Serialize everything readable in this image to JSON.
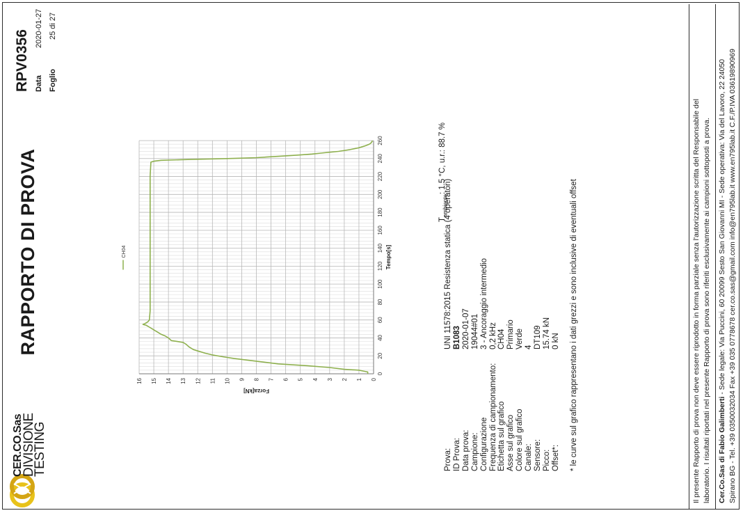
{
  "header": {
    "logo_lines": [
      "CER.CO.Sas",
      "DIVISIONE",
      "TESTING"
    ],
    "title": "RAPPORTO DI PROVA",
    "report_code": "RPV0356",
    "data_label": "Data",
    "data_value": "2020-01-27",
    "foglio_label": "Foglio",
    "foglio_value": "25 di 27"
  },
  "info": {
    "rows": [
      {
        "label": "Prova:",
        "value": "UNI 11578:2015 Resistenza statica (4 operatori)",
        "bold": false
      },
      {
        "label": "ID Prova:",
        "value": "B1083",
        "bold": true
      },
      {
        "label": "Data prova:",
        "value": "2020-01-07",
        "bold": false
      },
      {
        "label": "Campione:",
        "value": "19044#01",
        "bold": false
      },
      {
        "label": "Configurazione",
        "value": "3 - Ancoraggio intermedio",
        "bold": false
      },
      {
        "label": "Frequenza di campionamento:",
        "value": "0,2 kHz",
        "bold": false
      },
      {
        "label": "Etichetta sul grafico",
        "value": "CH04",
        "bold": false
      },
      {
        "label": "Asse sul grafico",
        "value": "Primario",
        "bold": false
      },
      {
        "label": "Colore sul grafico",
        "value": "Verde",
        "bold": false
      },
      {
        "label": "Canale:",
        "value": "4",
        "bold": false
      },
      {
        "label": "Sensore:",
        "value": "DT109",
        "bold": false
      },
      {
        "label": "Picco:",
        "value": "15.74 kN",
        "bold": false
      },
      {
        "label": "Offset*:",
        "value": "0 kN",
        "bold": false
      }
    ],
    "ambient_prefix": "T",
    "ambient_sub": "ambiente",
    "ambient_text": ": 1.5 °C, u.r.: 88.7 %",
    "note": "* le curve sul grafico rappresentano i dati grezzi e sono inclusive di eventuali offset"
  },
  "footer": {
    "disclaimer_1": "Il presente Rapporto di prova non deve essere riprodotto in forma parziale senza l'autorizzazione scritta del Responsabile del",
    "disclaimer_2": "laboratorio. I risultati riportati nel presente Rapporto di prova sono riferiti esclusivamente ai campioni sottoposti a prova.",
    "company_bold": "Cer.Co.Sas di Fabio Galimberti",
    "company_line1": " - Sede legale: Via Puccini, 60 20099 Sesto San Giovanni MI - Sede operativa: Via del Lavoro, 22 24050",
    "company_line2": "Spirano BG - Tel. +39 0350032034 Fax +39 035 0778678 cer.co.sas@gmail.com info@en795lab.it www.en795lab.it C.F./P.IVA 03619890969"
  },
  "colors": {
    "series": "#8eb04e",
    "grid": "#c8c8c8",
    "border": "#2b2b2b"
  },
  "chart_data": {
    "type": "line",
    "xlabel": "Tempo[s]",
    "ylabel": "Forza[kN]",
    "xlim": [
      0,
      260
    ],
    "ylim": [
      0,
      16
    ],
    "x_ticks": [
      0,
      20,
      40,
      60,
      80,
      100,
      120,
      140,
      160,
      180,
      200,
      220,
      240,
      260
    ],
    "y_ticks": [
      0,
      1,
      2,
      3,
      4,
      5,
      6,
      7,
      8,
      9,
      10,
      11,
      12,
      13,
      14,
      15,
      16
    ],
    "grid": true,
    "legend_position": "top",
    "series": [
      {
        "name": "CH04",
        "color": "#8eb04e",
        "x": [
          0,
          2,
          3,
          4,
          5,
          7,
          9,
          11,
          13,
          15,
          17,
          19,
          21,
          23,
          25,
          27,
          30,
          33,
          35,
          36,
          37,
          40,
          42,
          44,
          46,
          48,
          50,
          52,
          54,
          55,
          56,
          58,
          60,
          70,
          80,
          90,
          100,
          120,
          140,
          160,
          180,
          200,
          220,
          236,
          237,
          238,
          239,
          240,
          241,
          242,
          243,
          244,
          245,
          246,
          247,
          248,
          250,
          252,
          254,
          256,
          257,
          258,
          259,
          260
        ],
        "y": [
          0.4,
          0.4,
          0.7,
          1.0,
          2.0,
          3.0,
          4.5,
          6.5,
          7.5,
          8.5,
          9.5,
          10.3,
          11.0,
          11.5,
          11.9,
          12.3,
          12.6,
          12.8,
          13.0,
          13.4,
          13.8,
          14.0,
          14.2,
          14.5,
          14.7,
          14.9,
          15.1,
          15.3,
          15.5,
          15.74,
          15.6,
          15.4,
          15.3,
          15.25,
          15.25,
          15.25,
          15.25,
          15.25,
          15.25,
          15.25,
          15.25,
          15.25,
          15.25,
          15.2,
          15.0,
          14.5,
          12.5,
          10.0,
          8.0,
          7.0,
          6.0,
          5.0,
          4.2,
          3.6,
          3.0,
          2.4,
          1.6,
          1.0,
          0.6,
          0.3,
          0.2,
          0.15,
          0.1,
          0.1
        ]
      }
    ]
  }
}
